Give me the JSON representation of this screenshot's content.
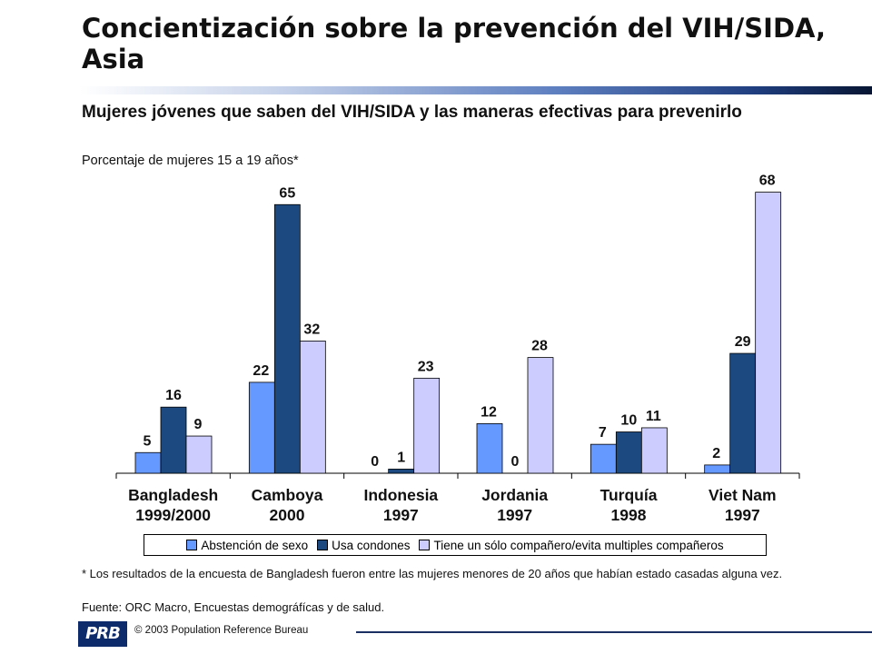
{
  "header": {
    "title": "Concientización sobre la prevención del VIH/SIDA, Asia",
    "subtitle": "Mujeres jóvenes que saben del VIH/SIDA y las maneras efectivas para prevenirlo",
    "unit_note": "Porcentaje de mujeres 15 a 19 años*"
  },
  "chart_data": {
    "type": "bar",
    "title": "Mujeres jóvenes que saben del VIH/SIDA y las maneras efectivas para prevenirlo",
    "ylabel": "Porcentaje de mujeres 15 a 19 años*",
    "xlabel": "",
    "ylim": [
      0,
      70
    ],
    "grid": false,
    "legend_position": "bottom",
    "categories": [
      [
        "Bangladesh",
        "1999/2000"
      ],
      [
        "Camboya",
        "2000"
      ],
      [
        "Indonesia",
        "1997"
      ],
      [
        "Jordania",
        "1997"
      ],
      [
        "Turquía",
        "1998"
      ],
      [
        "Viet Nam",
        "1997"
      ]
    ],
    "series": [
      {
        "name": "Abstención de sexo",
        "color": "#6699ff",
        "values": [
          5,
          22,
          0,
          12,
          7,
          2
        ]
      },
      {
        "name": "Usa condones",
        "color": "#1c4a80",
        "values": [
          16,
          65,
          1,
          0,
          10,
          29
        ]
      },
      {
        "name": "Tiene un sólo compañero/evita multiples compañeros",
        "color": "#ccccff",
        "values": [
          9,
          32,
          23,
          28,
          11,
          68
        ]
      }
    ]
  },
  "notes": {
    "footnote": "* Los resultados de la encuesta de Bangladesh fueron entre las mujeres menores de 20 años que habían estado casadas alguna vez.",
    "source": "Fuente: ORC Macro, Encuestas demográfícas y de salud."
  },
  "footer": {
    "logo_text": "PRB",
    "copyright": "© 2003  Population Reference Bureau"
  }
}
